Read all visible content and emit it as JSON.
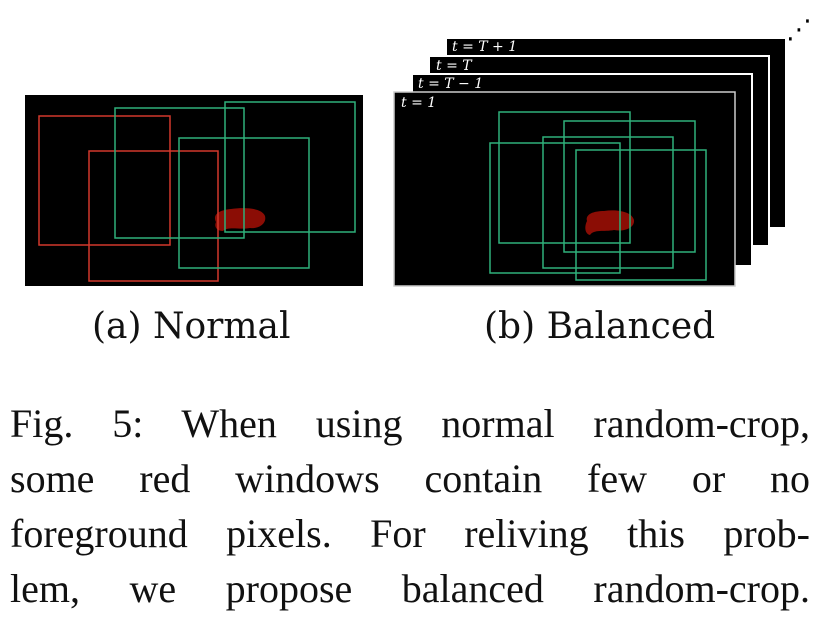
{
  "figure": {
    "panel_a": {
      "caption": "(a) Normal",
      "colors": {
        "background": "#000000",
        "red_window": "#d2392c",
        "green_window": "#2fb07a",
        "foreground": "#8b0d05"
      }
    },
    "panel_b": {
      "caption": "(b) Balanced",
      "frame_labels": [
        "t = T + 1",
        "t = T",
        "t = T − 1",
        "t = 1"
      ],
      "ellipsis": "⋰"
    }
  },
  "caption": {
    "lines": [
      "Fig. 5: When using normal random-crop,",
      "some red windows contain few or no",
      "foreground pixels. For reliving this prob-",
      "lem, we propose balanced random-crop."
    ]
  }
}
